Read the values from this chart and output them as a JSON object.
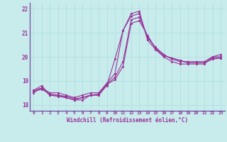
{
  "xlabel": "Windchill (Refroidissement éolien,°C)",
  "bg_color": "#c8ecec",
  "line_color": "#993399",
  "grid_color": "#aadddd",
  "spine_color": "#7755aa",
  "xlim": [
    -0.5,
    23.5
  ],
  "ylim": [
    17.75,
    22.25
  ],
  "yticks": [
    18,
    19,
    20,
    21,
    22
  ],
  "xticks": [
    0,
    1,
    2,
    3,
    4,
    5,
    6,
    7,
    8,
    9,
    10,
    11,
    12,
    13,
    14,
    15,
    16,
    17,
    18,
    19,
    20,
    21,
    22,
    23
  ],
  "series": [
    [
      18.6,
      18.8,
      18.4,
      18.4,
      18.3,
      18.2,
      18.2,
      18.4,
      18.4,
      18.8,
      19.9,
      21.1,
      21.8,
      21.9,
      20.7,
      20.3,
      20.0,
      19.8,
      19.7,
      19.7,
      19.7,
      19.7,
      20.0,
      20.1
    ],
    [
      18.6,
      18.7,
      18.5,
      18.5,
      18.4,
      18.3,
      18.4,
      18.5,
      18.5,
      18.9,
      19.3,
      21.1,
      21.7,
      21.8,
      20.8,
      20.4,
      20.1,
      19.9,
      19.8,
      19.8,
      19.8,
      19.8,
      20.0,
      20.0
    ],
    [
      18.55,
      18.65,
      18.45,
      18.4,
      18.35,
      18.25,
      18.3,
      18.4,
      18.45,
      18.85,
      19.15,
      19.8,
      21.55,
      21.65,
      20.85,
      20.35,
      20.05,
      19.95,
      19.85,
      19.75,
      19.75,
      19.75,
      19.95,
      19.95
    ],
    [
      18.5,
      18.7,
      18.4,
      18.35,
      18.3,
      18.2,
      18.3,
      18.4,
      18.4,
      18.85,
      19.05,
      19.6,
      21.4,
      21.5,
      20.9,
      20.35,
      20.05,
      19.95,
      19.85,
      19.75,
      19.75,
      19.75,
      19.9,
      19.95
    ]
  ]
}
